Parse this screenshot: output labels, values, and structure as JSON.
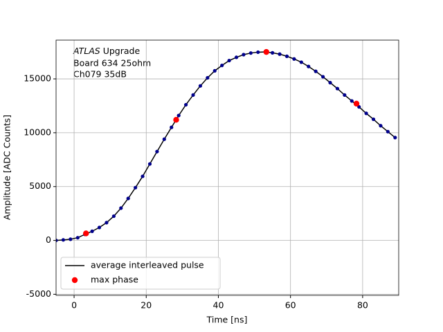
{
  "chart_data": {
    "type": "line",
    "xlabel": "Time [ns]",
    "ylabel": "Amplitude [ADC Counts]",
    "annotation": {
      "italic": "ATLAS",
      "text": "Upgrade",
      "lines": [
        "Board 634 25ohm",
        "Ch079 35dB"
      ]
    },
    "xlim": [
      -5,
      90
    ],
    "ylim": [
      -5100,
      18600
    ],
    "xticks": [
      0,
      20,
      40,
      60,
      80
    ],
    "yticks": [
      -5000,
      0,
      5000,
      10000,
      15000
    ],
    "grid": true,
    "legend": "lower left",
    "series": [
      {
        "name": "average interleaved pulse",
        "color": "#000000",
        "marker_color": "#00008b",
        "marker": "dot",
        "x": [
          -5,
          -3,
          -1,
          1,
          3,
          5,
          7,
          9,
          11,
          13,
          15,
          17,
          19,
          21,
          23,
          25,
          27,
          29,
          31,
          33,
          35,
          37,
          39,
          41,
          43,
          45,
          47,
          49,
          51,
          53,
          55,
          57,
          59,
          61,
          63,
          65,
          67,
          69,
          71,
          73,
          75,
          77,
          79,
          81,
          83,
          85,
          87,
          89
        ],
        "values": [
          0,
          50,
          110,
          250,
          560,
          850,
          1200,
          1650,
          2250,
          3000,
          3900,
          4900,
          5950,
          7100,
          8250,
          9400,
          10500,
          11600,
          12600,
          13500,
          14350,
          15100,
          15750,
          16250,
          16700,
          17000,
          17250,
          17400,
          17480,
          17500,
          17420,
          17300,
          17100,
          16850,
          16550,
          16150,
          15700,
          15200,
          14650,
          14100,
          13500,
          12950,
          12400,
          11800,
          11250,
          10650,
          10100,
          9550
        ]
      },
      {
        "name": "max phase",
        "color": "#ff0000",
        "marker": "circle",
        "x": [
          3.3,
          28.3,
          53.3,
          78.3
        ],
        "values": [
          650,
          11200,
          17500,
          12700
        ]
      }
    ]
  }
}
